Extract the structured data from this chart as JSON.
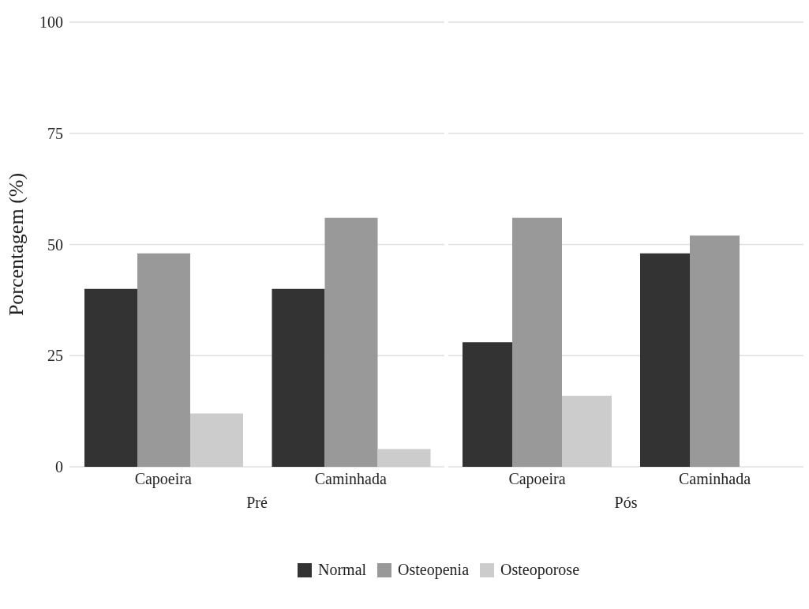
{
  "chart_data": [
    {
      "type": "bar",
      "xlabel": "Pré",
      "ylabel": "Porcentagem (%)",
      "categories": [
        "Capoeira",
        "Caminhada"
      ],
      "series": [
        {
          "name": "Normal",
          "color": "#333333",
          "values": [
            40,
            40
          ]
        },
        {
          "name": "Osteopenia",
          "color": "#999999",
          "values": [
            48,
            56
          ]
        },
        {
          "name": "Osteoporose",
          "color": "#cccccc",
          "values": [
            12,
            4
          ]
        }
      ],
      "ylim": [
        0,
        100
      ],
      "yticks": [
        0,
        25,
        50,
        75,
        100
      ],
      "grid": "y",
      "legend": "bottom"
    },
    {
      "type": "bar",
      "xlabel": "Pós",
      "categories": [
        "Capoeira",
        "Caminhada"
      ],
      "series": [
        {
          "color": "#333333",
          "values": [
            28,
            48
          ]
        },
        {
          "color": "#999999",
          "values": [
            56,
            52
          ]
        },
        {
          "color": "#cccccc",
          "values": [
            16,
            0
          ]
        }
      ],
      "ylim": [
        0,
        100
      ],
      "yticks": [
        0,
        25,
        50,
        75,
        100
      ],
      "grid": "y",
      "tick_labels": "x"
    }
  ]
}
